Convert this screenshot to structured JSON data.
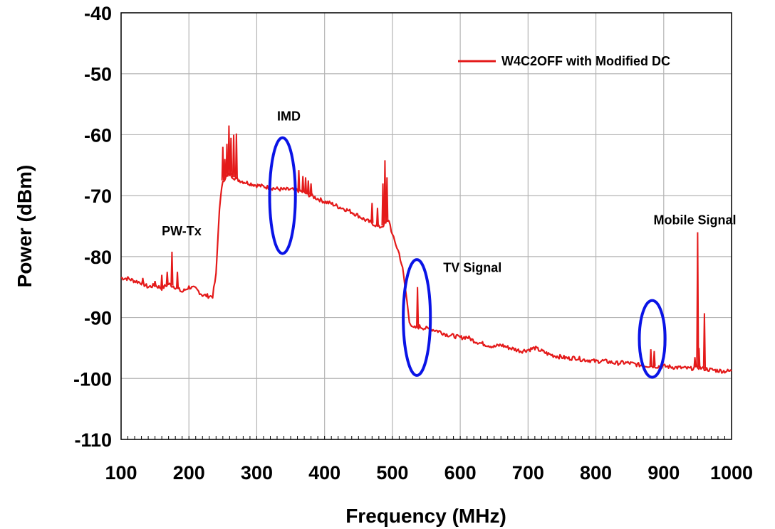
{
  "chart_data": {
    "type": "line",
    "xlabel": "Frequency (MHz)",
    "ylabel": "Power (dBm)",
    "xlim": [
      100,
      1000
    ],
    "ylim": [
      -110,
      -40
    ],
    "x_ticks": [
      100,
      200,
      300,
      400,
      500,
      600,
      700,
      800,
      900,
      1000
    ],
    "y_ticks": [
      -40,
      -50,
      -60,
      -70,
      -80,
      -90,
      -100,
      -110
    ],
    "grid": true,
    "legend_position": "top-right",
    "colors": {
      "series": "#e41a1a",
      "highlight": "#0a14e6",
      "grid": "#b4b4b4"
    },
    "series": [
      {
        "name": "W4C2OFF with Modified DC",
        "x": [
          100,
          110,
          120,
          130,
          140,
          150,
          160,
          170,
          180,
          190,
          200,
          210,
          220,
          230,
          235,
          240,
          245,
          250,
          260,
          270,
          280,
          290,
          300,
          310,
          320,
          330,
          340,
          350,
          360,
          370,
          380,
          390,
          400,
          410,
          420,
          430,
          440,
          450,
          460,
          470,
          475,
          480,
          485,
          490,
          495,
          500,
          505,
          510,
          515,
          520,
          525,
          530,
          540,
          550,
          560,
          570,
          580,
          590,
          600,
          610,
          620,
          630,
          640,
          650,
          660,
          670,
          680,
          690,
          700,
          710,
          720,
          730,
          740,
          750,
          760,
          770,
          780,
          790,
          800,
          810,
          820,
          830,
          840,
          850,
          860,
          870,
          880,
          890,
          900,
          910,
          920,
          930,
          940,
          945,
          950,
          955,
          960,
          965,
          970,
          980,
          990,
          1000
        ],
        "values": [
          -83.5,
          -83.6,
          -84.0,
          -84.3,
          -85.0,
          -84.7,
          -85.2,
          -84.5,
          -85.0,
          -85.8,
          -85.0,
          -85.3,
          -86.3,
          -86.5,
          -86.5,
          -83.0,
          -72.0,
          -67.5,
          -66.5,
          -67.3,
          -67.7,
          -68.0,
          -68.3,
          -68.5,
          -68.7,
          -68.9,
          -69.0,
          -69.0,
          -69.1,
          -69.5,
          -70.0,
          -70.5,
          -71.0,
          -71.3,
          -71.8,
          -72.2,
          -72.7,
          -73.3,
          -74.0,
          -74.5,
          -74.8,
          -75.2,
          -75.0,
          -74.5,
          -74.0,
          -76.5,
          -78.0,
          -79.5,
          -82.0,
          -86.0,
          -90.5,
          -91.8,
          -91.5,
          -91.8,
          -92.0,
          -92.3,
          -92.8,
          -93.0,
          -93.3,
          -93.2,
          -93.8,
          -94.2,
          -94.5,
          -94.8,
          -94.5,
          -94.9,
          -95.2,
          -95.5,
          -95.3,
          -95.0,
          -95.5,
          -96.0,
          -96.3,
          -96.5,
          -96.7,
          -96.6,
          -96.9,
          -97.0,
          -97.2,
          -97.1,
          -97.3,
          -97.5,
          -97.4,
          -97.5,
          -97.7,
          -97.9,
          -97.9,
          -98.0,
          -98.0,
          -98.1,
          -98.2,
          -98.3,
          -98.4,
          -98.2,
          -98.1,
          -98.3,
          -98.4,
          -98.5,
          -98.6,
          -98.7,
          -98.8,
          -98.8
        ]
      }
    ],
    "spikes": [
      {
        "x": 132,
        "y": -83.5
      },
      {
        "x": 150,
        "y": -84.0
      },
      {
        "x": 160,
        "y": -83.0
      },
      {
        "x": 168,
        "y": -82.5
      },
      {
        "x": 175,
        "y": -79.2
      },
      {
        "x": 183,
        "y": -82.5
      },
      {
        "x": 250,
        "y": -62.0
      },
      {
        "x": 253,
        "y": -64.0
      },
      {
        "x": 256,
        "y": -61.5
      },
      {
        "x": 259,
        "y": -58.5
      },
      {
        "x": 262,
        "y": -60.5
      },
      {
        "x": 266,
        "y": -60.0
      },
      {
        "x": 270,
        "y": -59.8
      },
      {
        "x": 362,
        "y": -65.8
      },
      {
        "x": 368,
        "y": -66.8
      },
      {
        "x": 372,
        "y": -67.0
      },
      {
        "x": 376,
        "y": -67.5
      },
      {
        "x": 380,
        "y": -68.0
      },
      {
        "x": 470,
        "y": -71.2
      },
      {
        "x": 478,
        "y": -72.0
      },
      {
        "x": 486,
        "y": -68.0
      },
      {
        "x": 489,
        "y": -64.2
      },
      {
        "x": 492,
        "y": -67.0
      },
      {
        "x": 537,
        "y": -85.0
      },
      {
        "x": 881,
        "y": -95.2
      },
      {
        "x": 886,
        "y": -95.5
      },
      {
        "x": 946,
        "y": -96.5
      },
      {
        "x": 950,
        "y": -76.0
      },
      {
        "x": 952,
        "y": -95.0
      },
      {
        "x": 960,
        "y": -89.3
      }
    ],
    "annotations": [
      {
        "text": "PW-Tx",
        "x": 160,
        "y": -76.5
      },
      {
        "text": "IMD",
        "x": 330,
        "y": -57.7
      },
      {
        "text": "TV Signal",
        "x": 575,
        "y": -82.5
      },
      {
        "text": "Mobile Signal",
        "x": 885,
        "y": -74.7
      }
    ],
    "ellipses": [
      {
        "cx": 338,
        "cy": -70.0,
        "rx": 19,
        "ry": 9.5
      },
      {
        "cx": 536,
        "cy": -90.0,
        "rx": 20,
        "ry": 9.5
      },
      {
        "cx": 883,
        "cy": -93.5,
        "rx": 19,
        "ry": 6.3
      }
    ]
  }
}
